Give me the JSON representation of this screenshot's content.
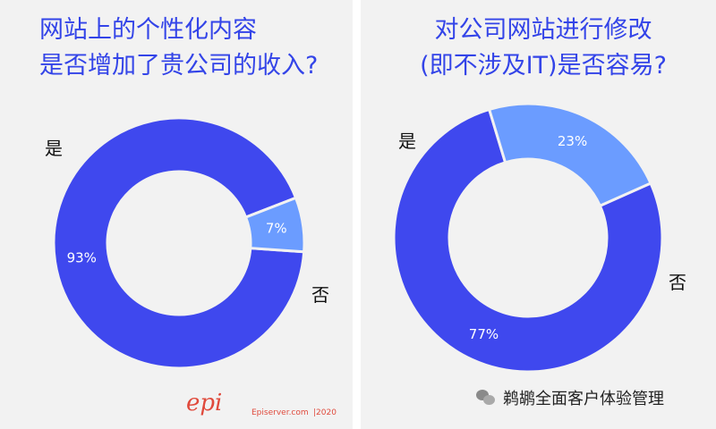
{
  "panels": [
    {
      "title_line1": "网站上的个性化内容",
      "title_line2": "是否增加了贵公司的收入?"
    },
    {
      "title_line1": "对公司网站进行修改",
      "title_line2": "(即不涉及IT)是否容易?"
    }
  ],
  "footer": {
    "logo": "epi",
    "site": "Episerver.com",
    "year": "|2020"
  },
  "wechat": {
    "account": "鹈鹕全面客户体验管理",
    "icon": "wechat-icon"
  },
  "colors": {
    "dark": "#3f48ee",
    "light": "#6b9cff",
    "title": "#3344e8",
    "accent": "#e04a3c"
  },
  "chart_data": [
    {
      "type": "pie",
      "title": "网站上的个性化内容是否增加了贵公司的收入?",
      "categories": [
        "是",
        "否"
      ],
      "values": [
        93,
        7
      ],
      "labels": [
        "93%",
        "7%"
      ],
      "hole": true
    },
    {
      "type": "pie",
      "title": "对公司网站进行修改(即不涉及IT)是否容易?",
      "categories": [
        "是",
        "否"
      ],
      "values": [
        77,
        23
      ],
      "labels": [
        "77%",
        "23%"
      ],
      "hole": true
    }
  ]
}
